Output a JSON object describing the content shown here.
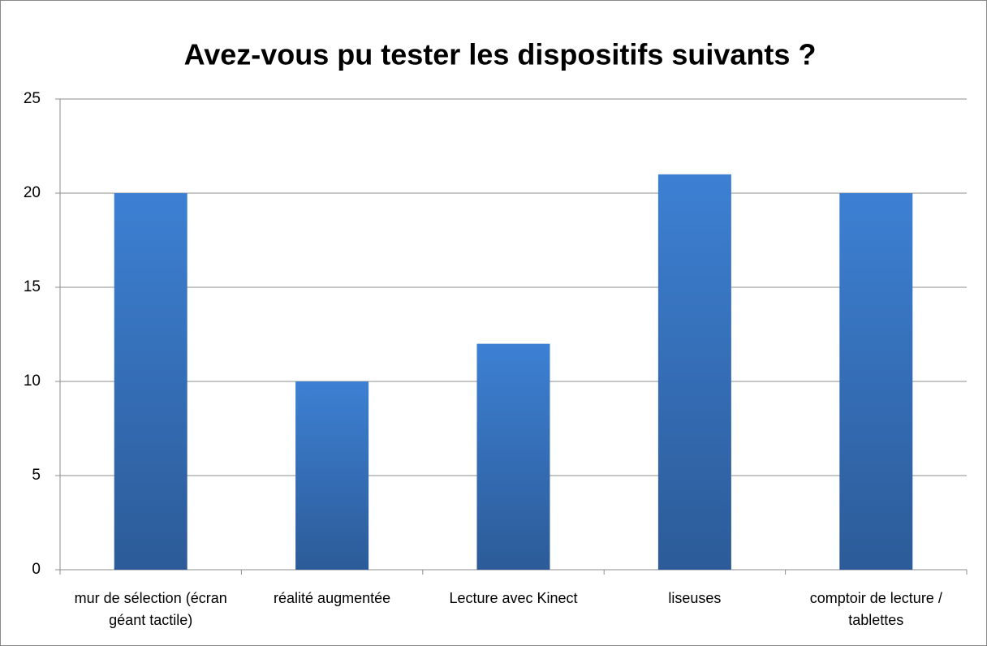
{
  "chart_data": {
    "type": "bar",
    "title": "Avez-vous pu tester les dispositifs suivants ?",
    "categories": [
      "mur de sélection (écran géant tactile)",
      "réalité augmentée",
      "Lecture avec Kinect",
      "liseuses",
      "comptoir de lecture / tablettes"
    ],
    "values": [
      20,
      10,
      12,
      21,
      20
    ],
    "color": "#3a78c8",
    "ylim": [
      0,
      25
    ],
    "yticks": [
      0,
      5,
      10,
      15,
      20,
      25
    ],
    "grid": true
  }
}
